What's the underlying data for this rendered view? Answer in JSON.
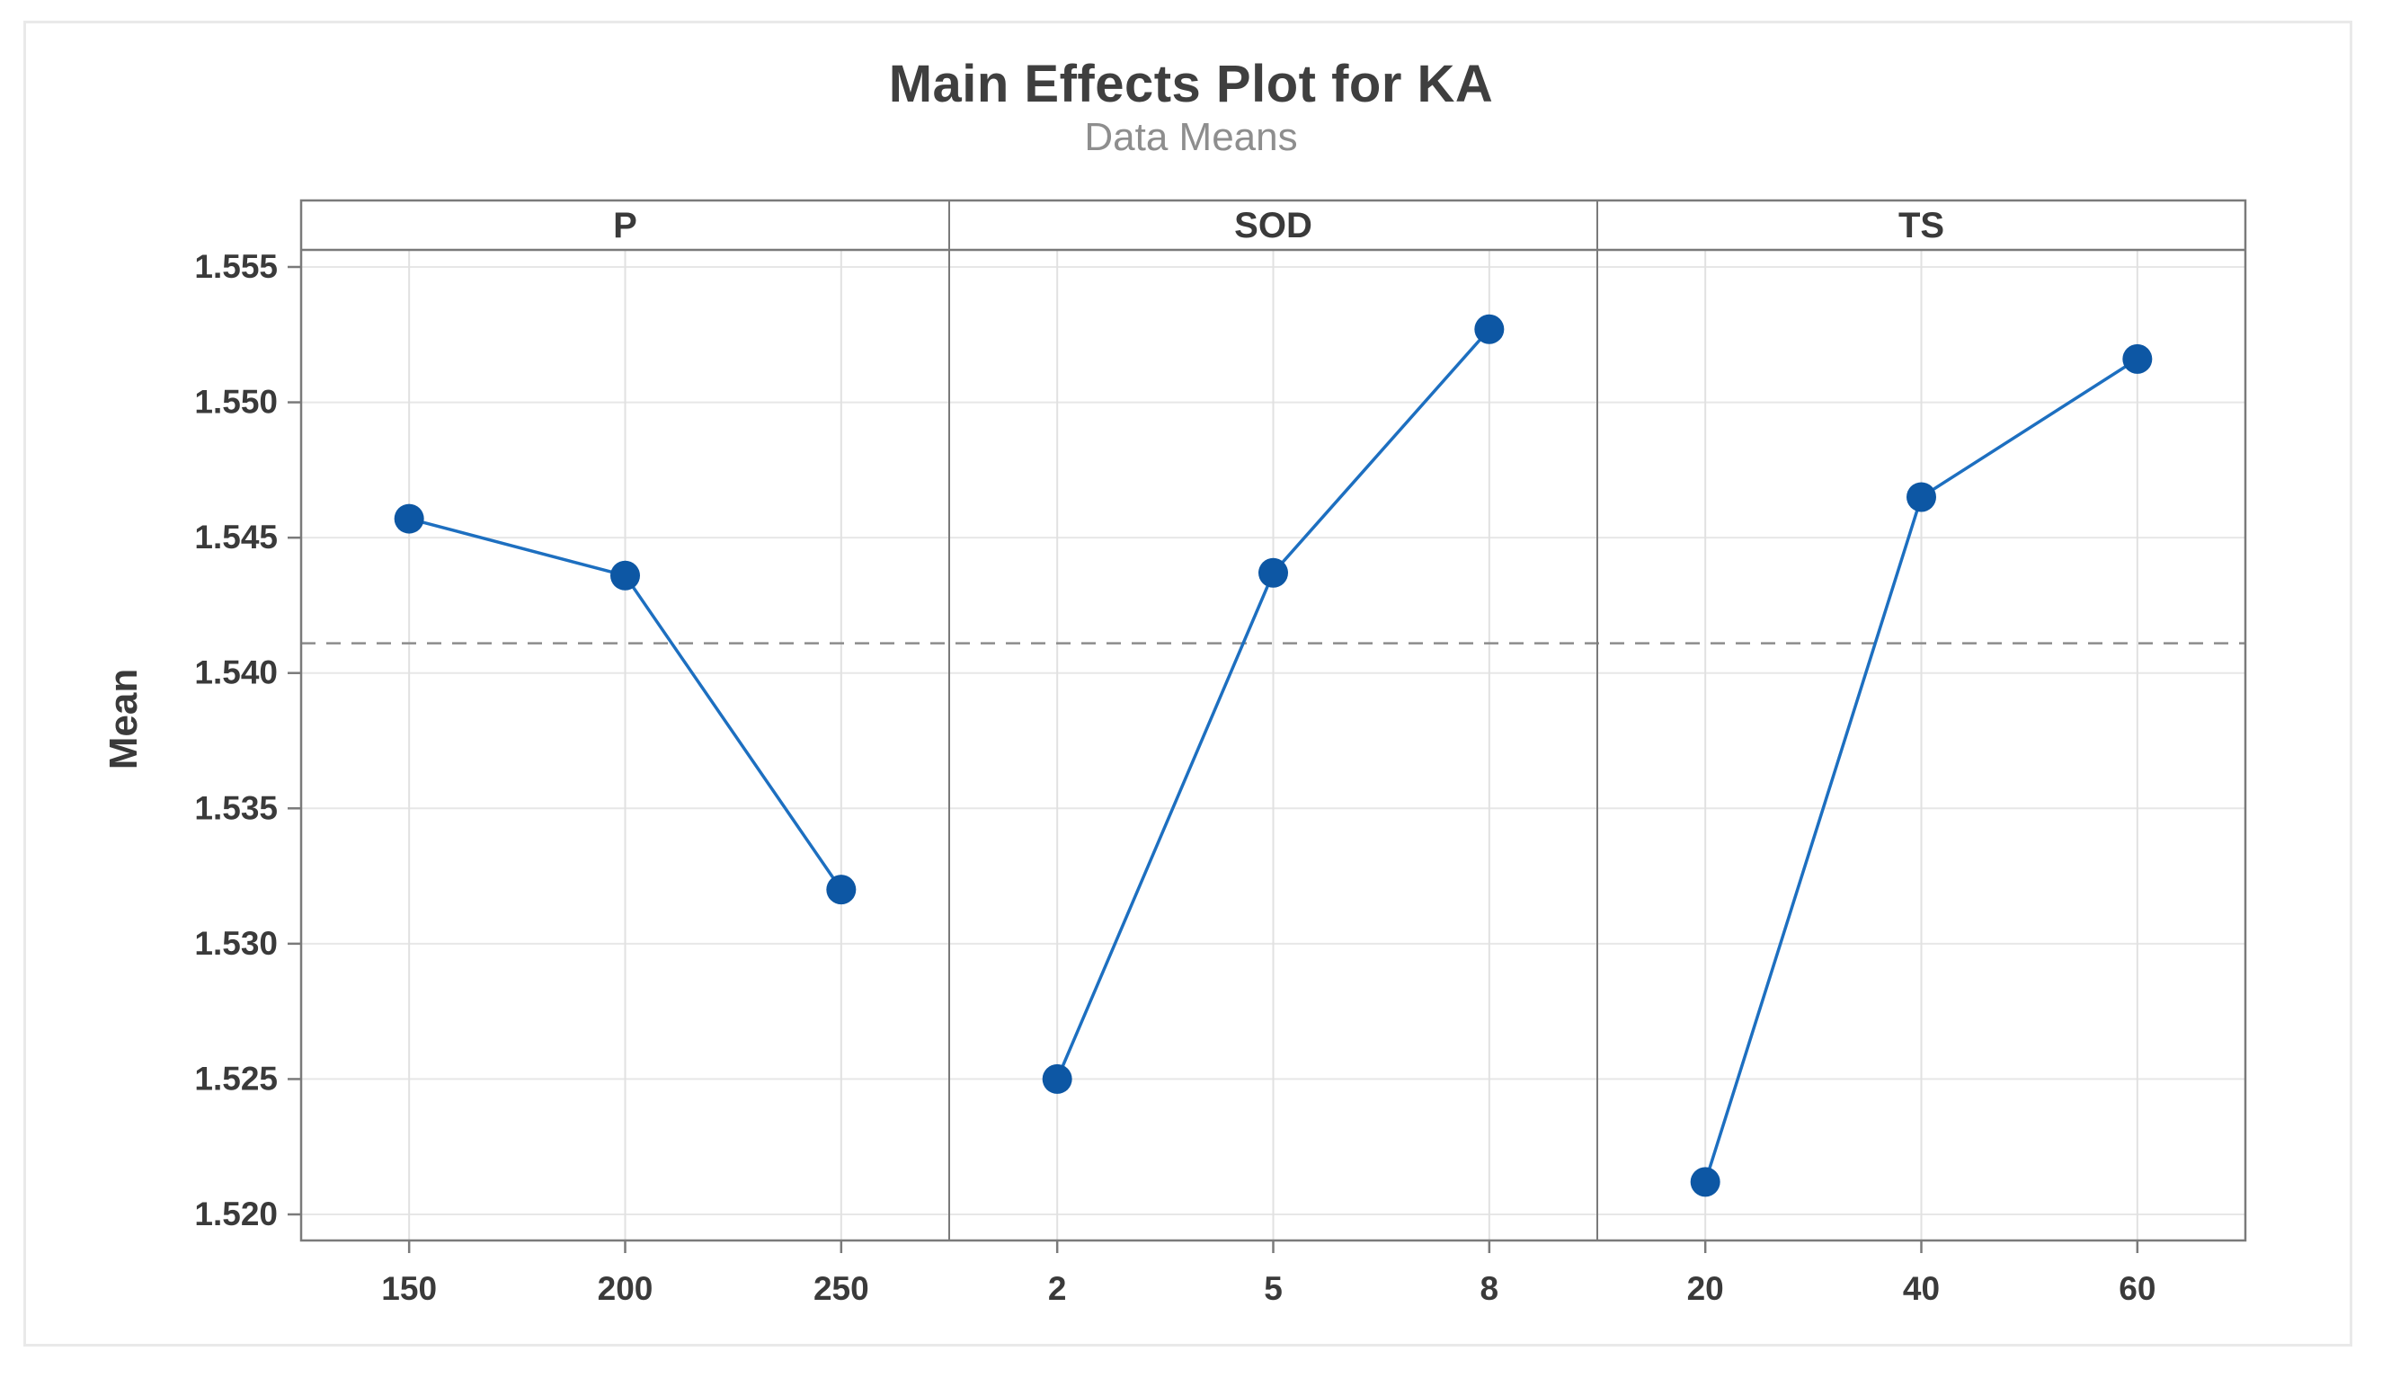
{
  "chart_data": {
    "type": "line",
    "title": "Main Effects Plot for KA",
    "subtitle": "Data Means",
    "ylabel": "Mean",
    "ylim": [
      1.52,
      1.555
    ],
    "yticks": [
      1.555,
      1.55,
      1.545,
      1.54,
      1.535,
      1.53,
      1.525,
      1.52
    ],
    "ytick_labels": [
      "1.555",
      "1.550",
      "1.545",
      "1.540",
      "1.535",
      "1.530",
      "1.525",
      "1.520"
    ],
    "reference_line_mean": 1.5411,
    "grid": true,
    "legend": "none",
    "panels": [
      {
        "label": "P",
        "categories": [
          "150",
          "200",
          "250"
        ],
        "values": [
          1.5457,
          1.5436,
          1.532
        ]
      },
      {
        "label": "SOD",
        "categories": [
          "2",
          "5",
          "8"
        ],
        "values": [
          1.525,
          1.5437,
          1.5527
        ]
      },
      {
        "label": "TS",
        "categories": [
          "20",
          "40",
          "60"
        ],
        "values": [
          1.5212,
          1.5465,
          1.5516
        ]
      }
    ],
    "colors": {
      "line": "#1d6fc0",
      "marker": "#0d57a4",
      "grid_line": "#e7e7e7",
      "panel_border": "#7a7a7a",
      "reference_line": "#8c8c8c",
      "tick_text": "#3a3a3a",
      "title_text": "#3f3f3f",
      "subtitle_text": "#8e8e8e"
    }
  }
}
